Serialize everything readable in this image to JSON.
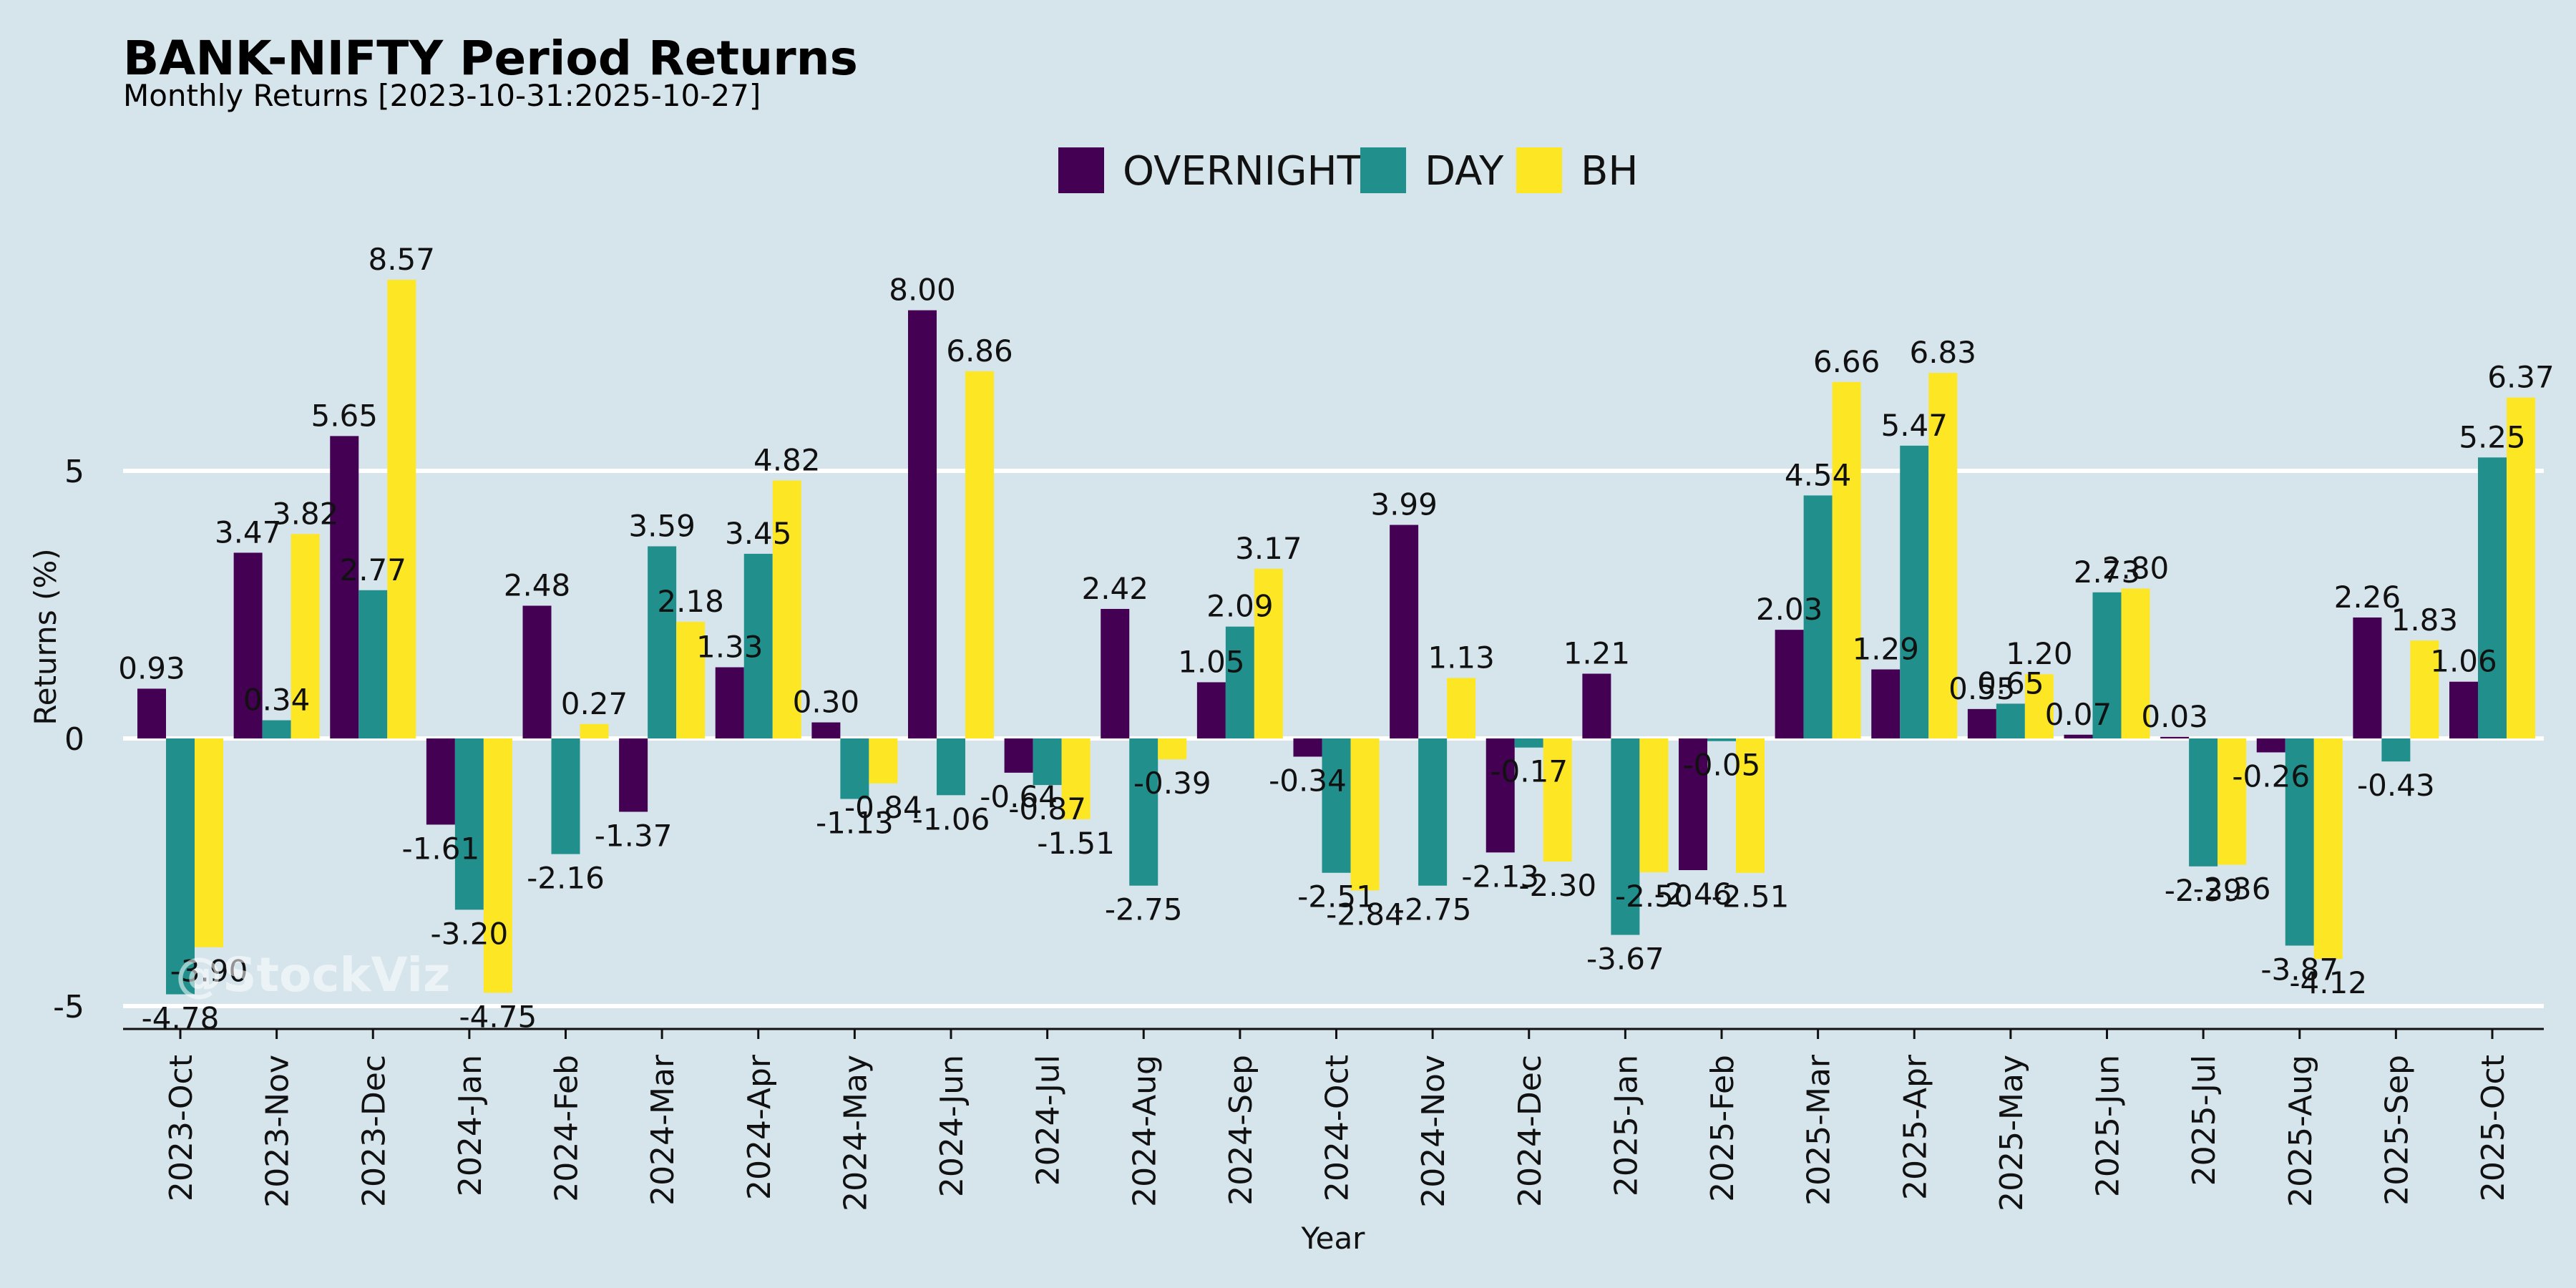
{
  "chart_data": {
    "type": "bar",
    "title": "BANK-NIFTY Period Returns",
    "subtitle": "Monthly Returns [2023-10-31:2025-10-27]",
    "xlabel": "Year",
    "ylabel": "Returns (%)",
    "ylim": [
      -5.5,
      9.3
    ],
    "yticks": [
      -5,
      0,
      5
    ],
    "grid": "horizontal",
    "legend_position": "top-center",
    "watermark": "@StockViz",
    "categories": [
      "2023-Oct",
      "2023-Nov",
      "2023-Dec",
      "2024-Jan",
      "2024-Feb",
      "2024-Mar",
      "2024-Apr",
      "2024-May",
      "2024-Jun",
      "2024-Jul",
      "2024-Aug",
      "2024-Sep",
      "2024-Oct",
      "2024-Nov",
      "2024-Dec",
      "2025-Jan",
      "2025-Feb",
      "2025-Mar",
      "2025-Apr",
      "2025-May",
      "2025-Jun",
      "2025-Jul",
      "2025-Aug",
      "2025-Sep",
      "2025-Oct"
    ],
    "series": [
      {
        "name": "OVERNIGHT",
        "color": "#440154",
        "values": [
          0.93,
          3.47,
          5.65,
          -1.61,
          2.48,
          -1.37,
          1.33,
          0.3,
          8.0,
          -0.64,
          2.42,
          1.05,
          -0.34,
          3.99,
          -2.13,
          1.21,
          -2.46,
          2.03,
          1.29,
          0.55,
          0.07,
          0.03,
          -0.26,
          2.26,
          1.06
        ]
      },
      {
        "name": "DAY",
        "color": "#21908d",
        "values": [
          -4.78,
          0.34,
          2.77,
          -3.2,
          -2.16,
          3.59,
          3.45,
          -1.13,
          -1.06,
          -0.87,
          -2.75,
          2.09,
          -2.51,
          -2.75,
          -0.17,
          -3.67,
          -0.05,
          4.54,
          5.47,
          0.65,
          2.73,
          -2.39,
          -3.87,
          -0.43,
          5.25
        ]
      },
      {
        "name": "BH",
        "color": "#fde725",
        "values": [
          -3.9,
          3.82,
          8.57,
          -4.75,
          0.27,
          2.18,
          4.82,
          -0.84,
          6.86,
          -1.51,
          -0.39,
          3.17,
          -2.84,
          1.13,
          -2.3,
          -2.5,
          -2.51,
          6.66,
          6.83,
          1.2,
          2.8,
          -2.36,
          -4.12,
          1.83,
          6.37
        ]
      }
    ]
  }
}
